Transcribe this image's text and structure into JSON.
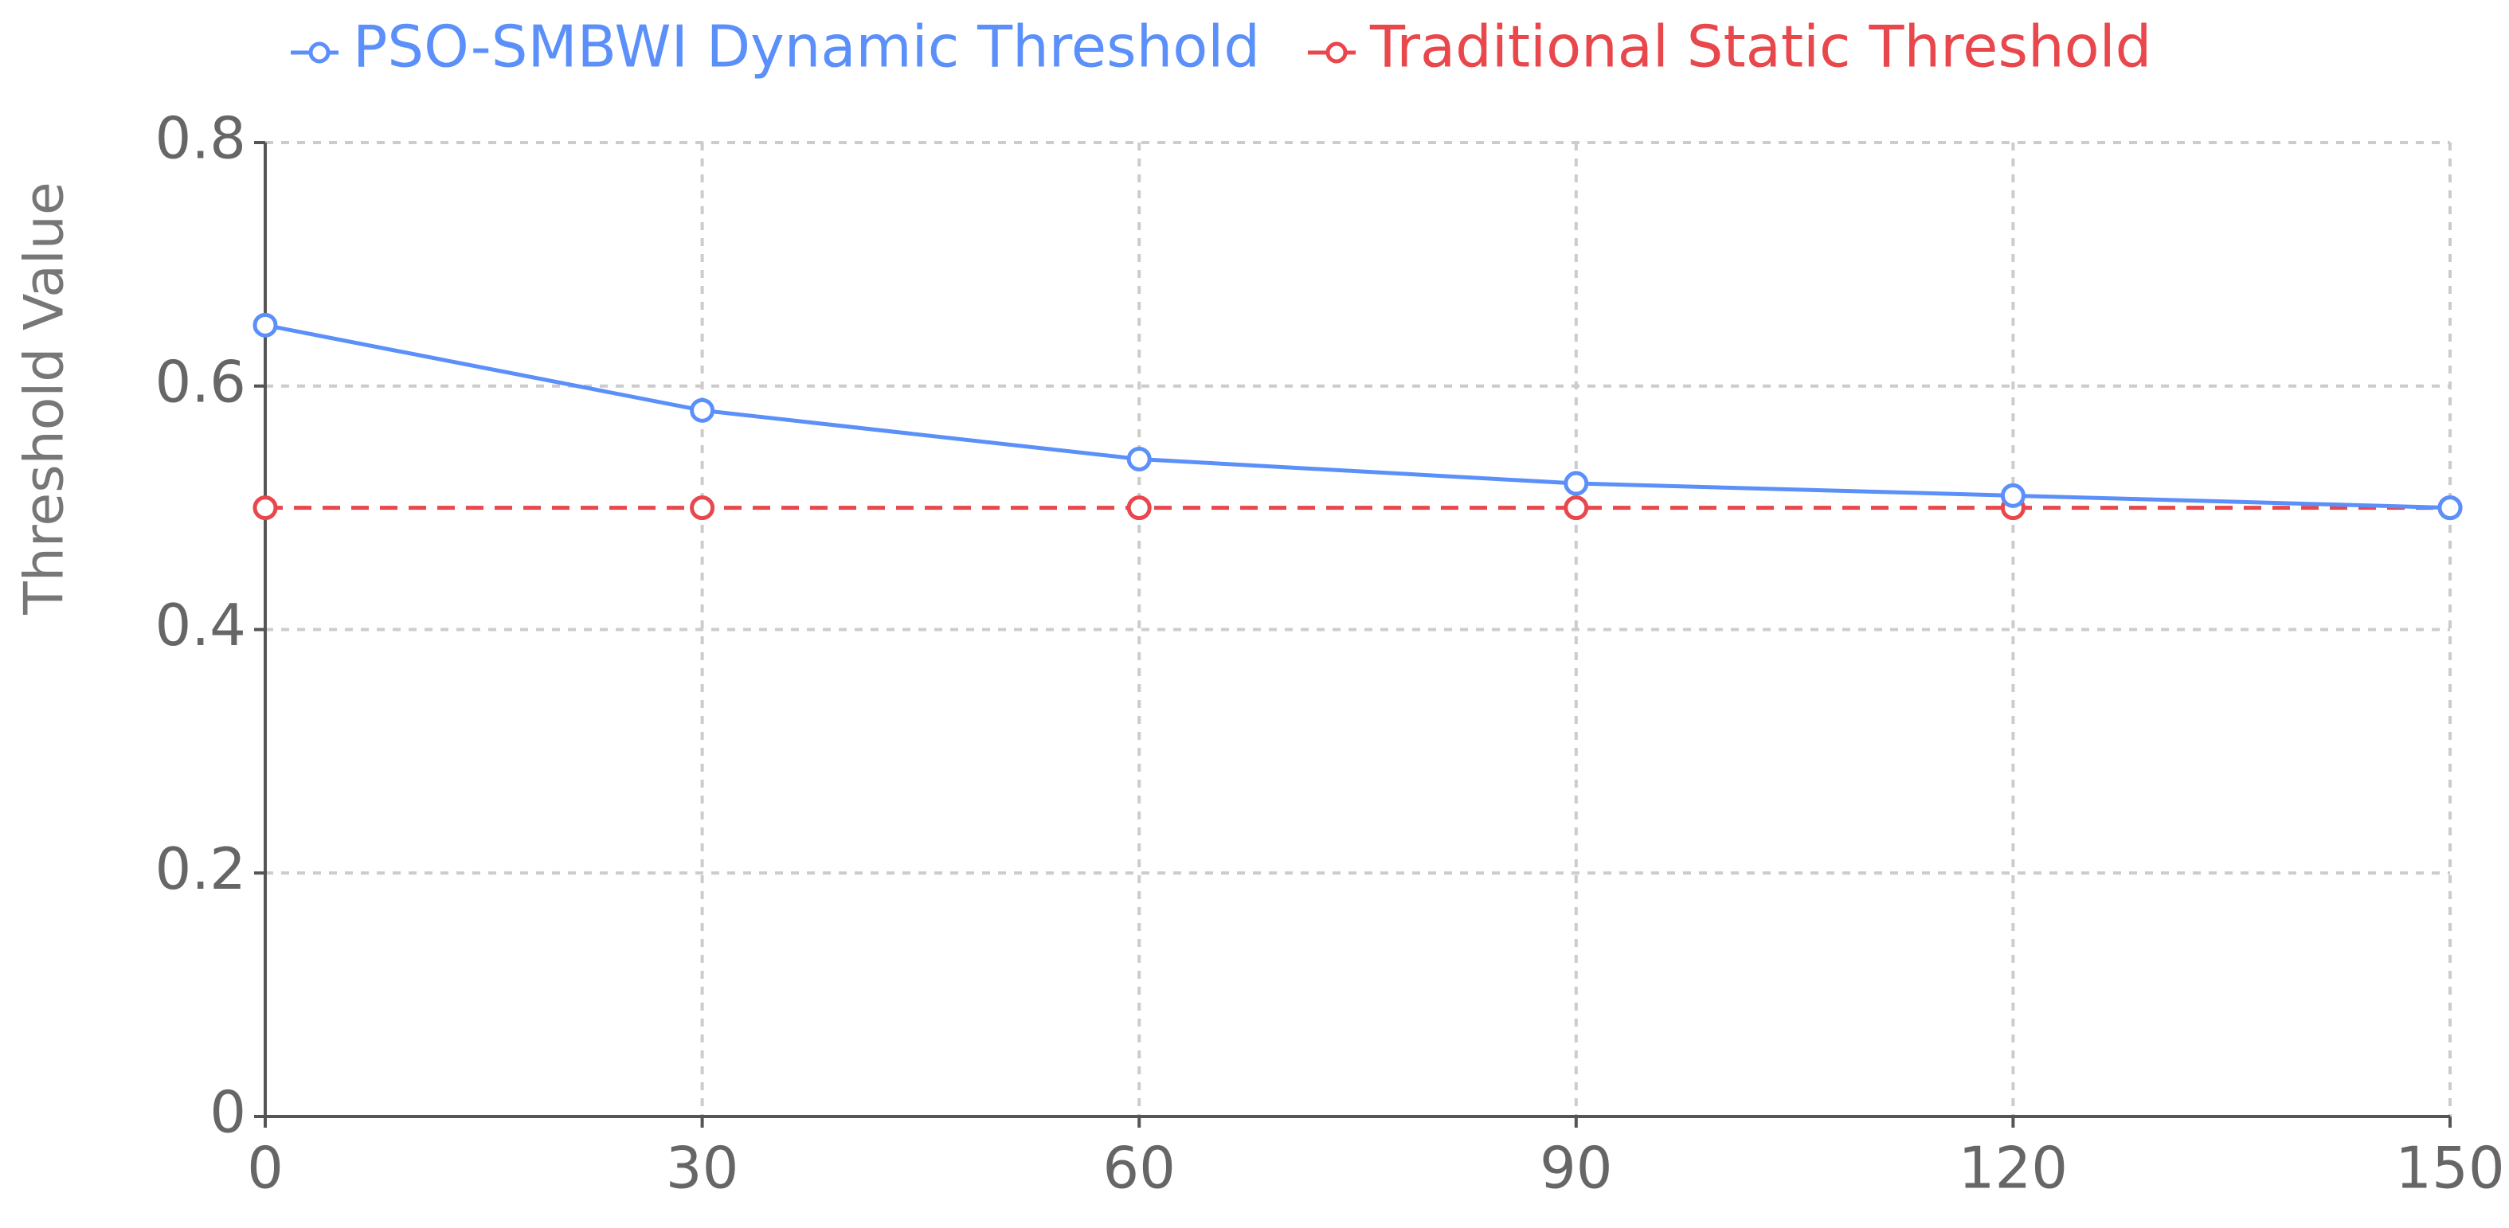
{
  "chart_data": {
    "type": "line",
    "y_label": "Threshold Value",
    "x": [
      0,
      30,
      60,
      90,
      120,
      150
    ],
    "series": [
      {
        "name": "PSO-SMBWI Dynamic Threshold",
        "color": "#5b8ff9",
        "values": [
          0.65,
          0.58,
          0.54,
          0.52,
          0.51,
          0.5
        ]
      },
      {
        "name": "Traditional Static Threshold",
        "color": "#e8474c",
        "values": [
          0.5,
          0.5,
          0.5,
          0.5,
          0.5,
          0.5
        ],
        "dashed": true
      }
    ],
    "xlim": [
      0,
      150
    ],
    "xticks": [
      0,
      30,
      60,
      90,
      120,
      150
    ],
    "ylim": [
      0,
      0.8
    ],
    "yticks": [
      0,
      0.2,
      0.4,
      0.6,
      0.8
    ],
    "grid": true,
    "legend": "top"
  }
}
